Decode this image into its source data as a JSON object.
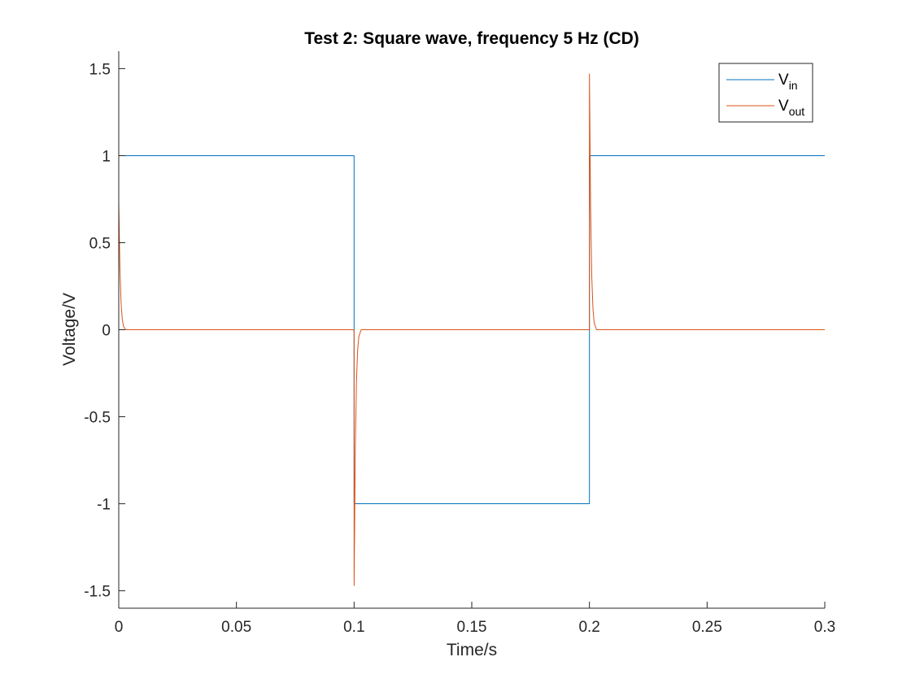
{
  "chart_data": {
    "type": "line",
    "title": "Test 2: Square wave, frequency 5 Hz (CD)",
    "xlabel": "Time/s",
    "ylabel": "Voltage/V",
    "xlim": [
      0,
      0.3
    ],
    "ylim": [
      -1.6,
      1.6
    ],
    "xticks": [
      0,
      0.05,
      0.1,
      0.15,
      0.2,
      0.25,
      0.3
    ],
    "xtick_labels": [
      "0",
      "0.05",
      "0.1",
      "0.15",
      "0.2",
      "0.25",
      "0.3"
    ],
    "yticks": [
      -1.5,
      -1,
      -0.5,
      0,
      0.5,
      1,
      1.5
    ],
    "ytick_labels": [
      "-1.5",
      "-1",
      "-0.5",
      "0",
      "0.5",
      "1",
      "1.5"
    ],
    "grid": false,
    "legend_position": "top-right",
    "series": [
      {
        "name": "V_in",
        "name_main": "V",
        "name_sub": "in",
        "color": "#0072BD",
        "points": [
          [
            0,
            1
          ],
          [
            0.1,
            1
          ],
          [
            0.1,
            -1
          ],
          [
            0.2,
            -1
          ],
          [
            0.2,
            1
          ],
          [
            0.3,
            1
          ]
        ]
      },
      {
        "name": "V_out",
        "name_main": "V",
        "name_sub": "out",
        "color": "#D95319",
        "points": [
          [
            0,
            0.73
          ],
          [
            0.0005,
            0.35
          ],
          [
            0.001,
            0.15
          ],
          [
            0.0015,
            0.06
          ],
          [
            0.002,
            0.02
          ],
          [
            0.003,
            0
          ],
          [
            0.1,
            0
          ],
          [
            0.1,
            -1.47
          ],
          [
            0.1005,
            -0.7
          ],
          [
            0.101,
            -0.3
          ],
          [
            0.1015,
            -0.12
          ],
          [
            0.102,
            -0.04
          ],
          [
            0.103,
            0
          ],
          [
            0.2,
            0
          ],
          [
            0.2,
            1.47
          ],
          [
            0.2005,
            0.7
          ],
          [
            0.201,
            0.3
          ],
          [
            0.2015,
            0.12
          ],
          [
            0.202,
            0.04
          ],
          [
            0.203,
            0
          ],
          [
            0.3,
            0
          ]
        ]
      }
    ]
  }
}
